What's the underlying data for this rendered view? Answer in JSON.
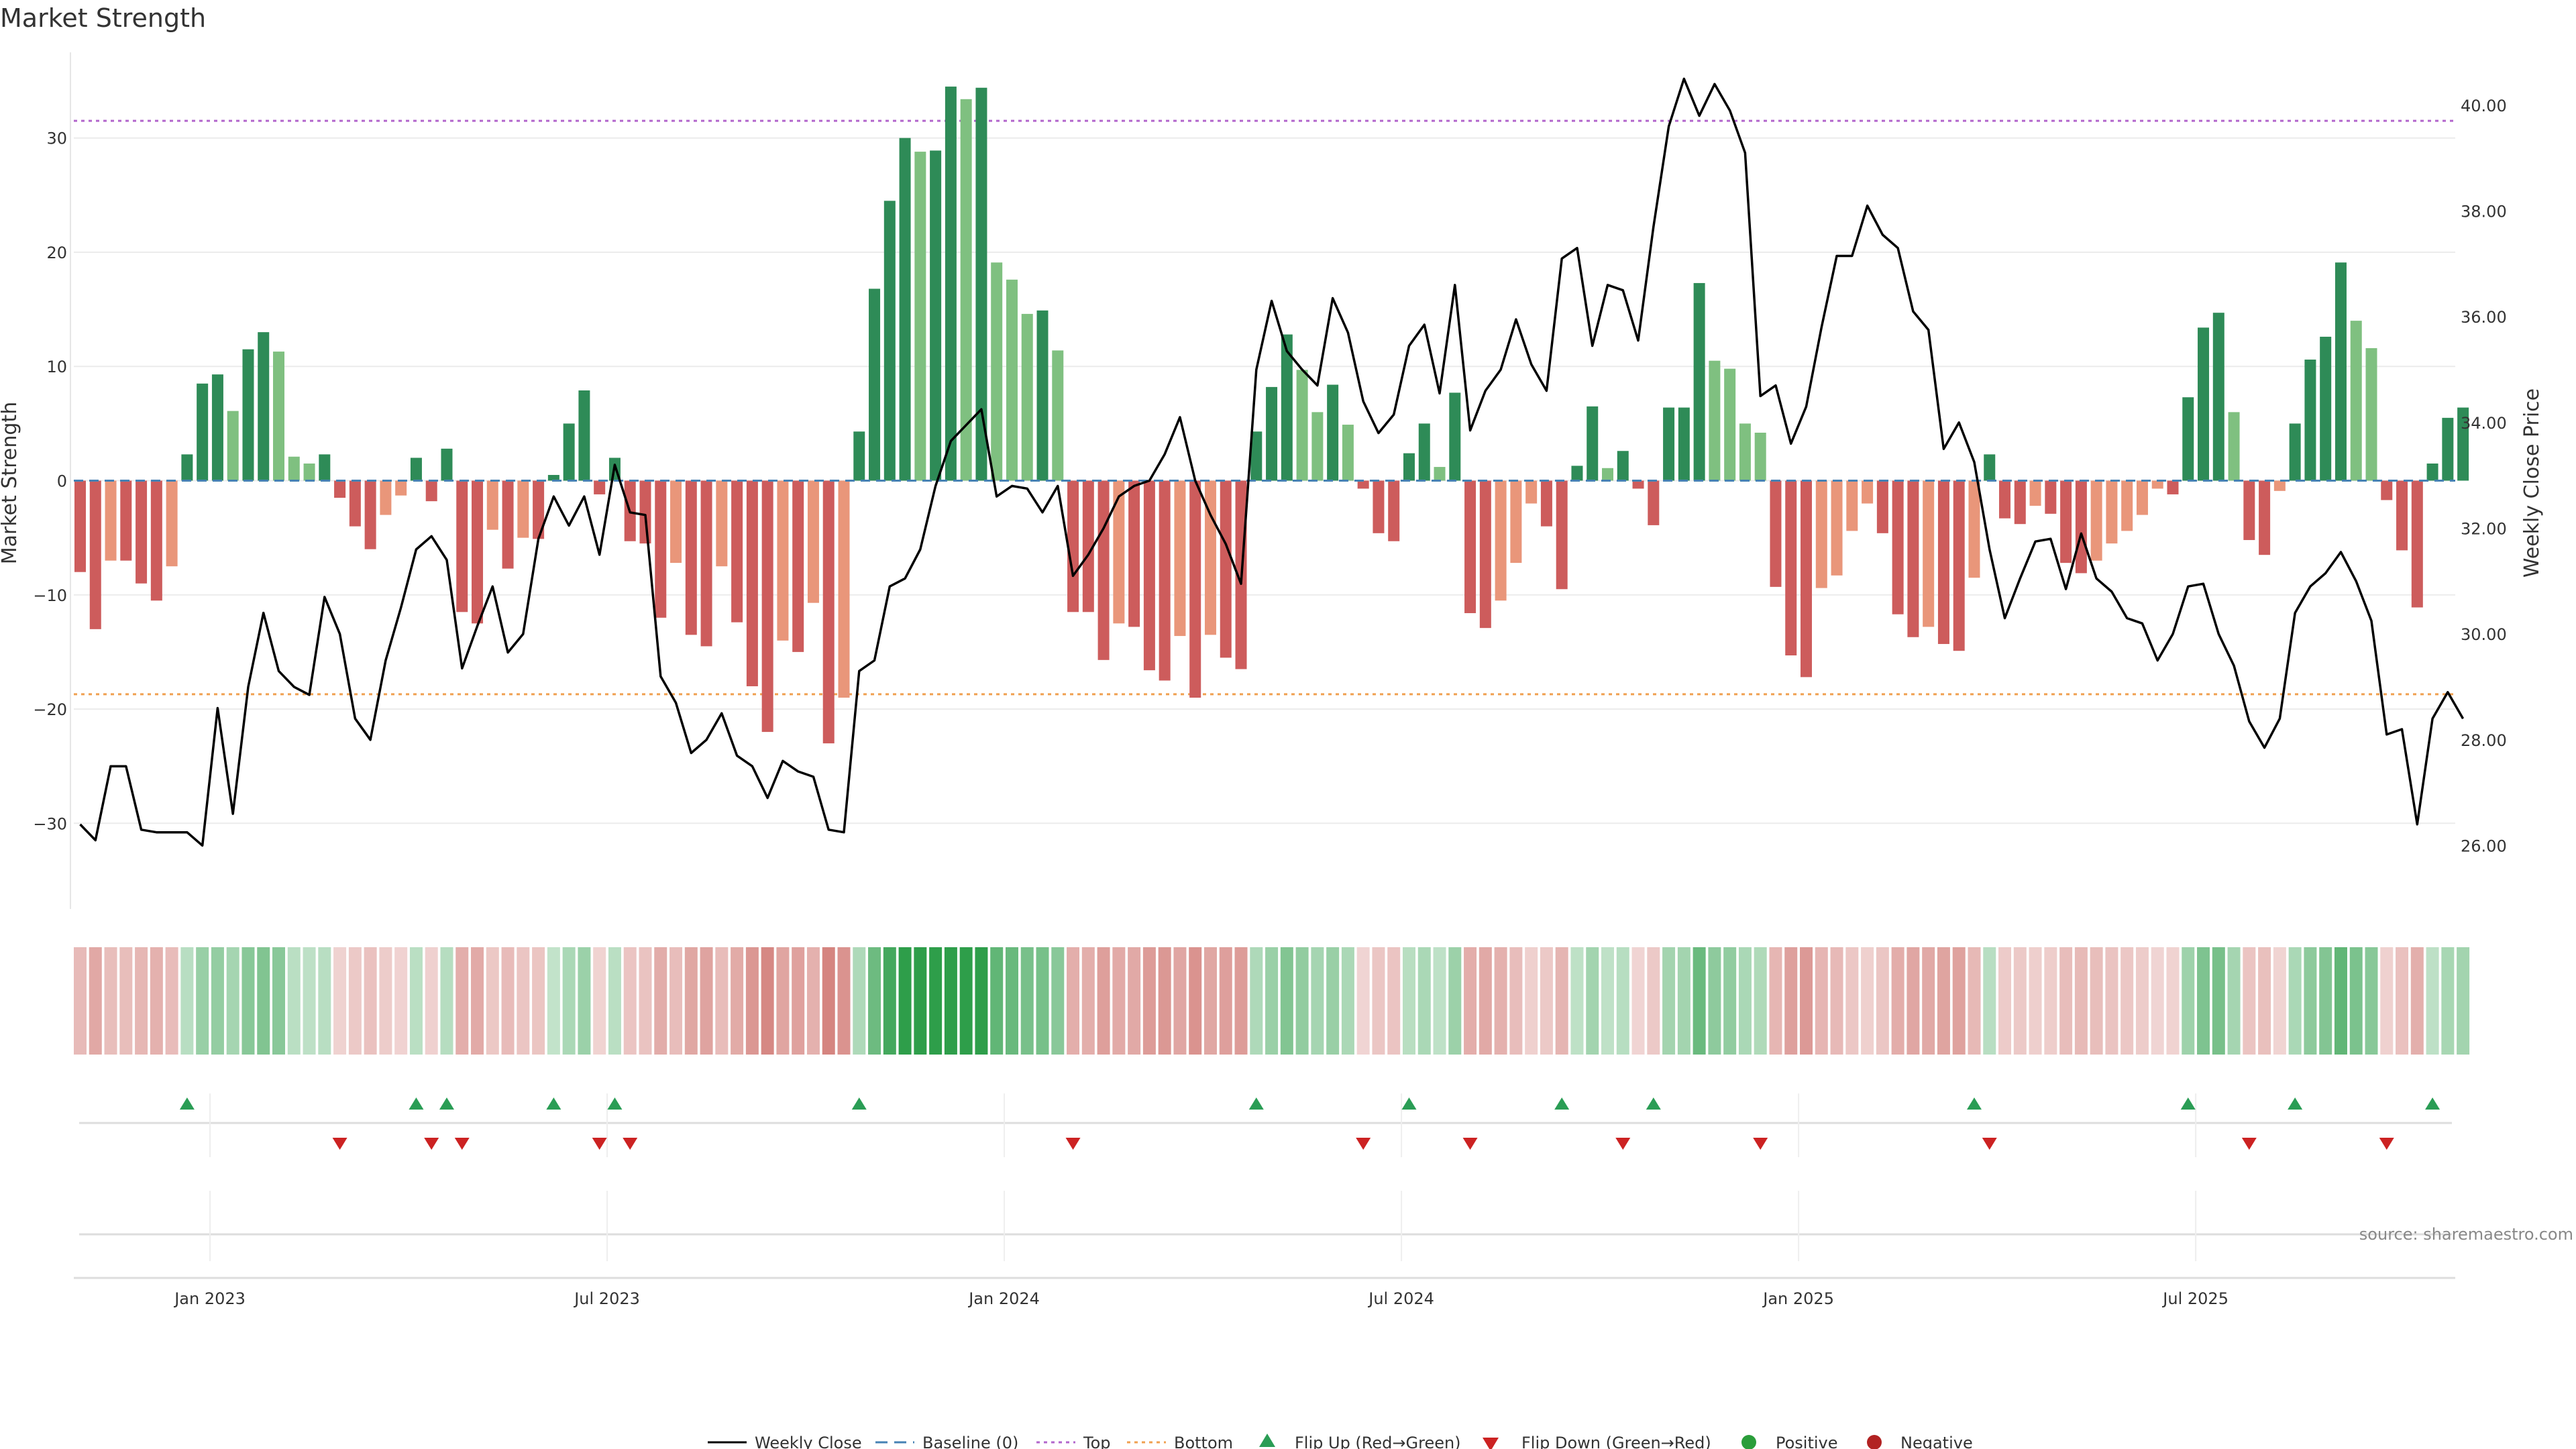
{
  "chart_data": {
    "type": "bar",
    "title": "Market Strength",
    "ylabel_left": "Market Strength",
    "ylabel_right": "Weekly Close Price",
    "ylim_left": [
      -37.5,
      37.5
    ],
    "ylim_right": [
      24.8,
      41.0
    ],
    "left_ticks": [
      30,
      20,
      10,
      0,
      -10,
      -20,
      -30
    ],
    "left_tick_labels": [
      "30",
      "20",
      "10",
      "0",
      "−10",
      "−20",
      "−30"
    ],
    "right_ticks": [
      40,
      38,
      36,
      34,
      32,
      30,
      28,
      26
    ],
    "right_tick_labels": [
      "40.00",
      "38.00",
      "36.00",
      "34.00",
      "32.00",
      "30.00",
      "28.00",
      "26.00"
    ],
    "x_tick_labels": [
      "Jan 2023",
      "Jul 2023",
      "Jan 2024",
      "Jul 2024",
      "Jan 2025",
      "Jul 2025"
    ],
    "x_tick_weeks": [
      8.5,
      34.5,
      60.5,
      86.5,
      112.5,
      138.5
    ],
    "top_line": 31.5,
    "bottom_line": -18.7,
    "strength": [
      -8,
      -13,
      -7,
      -7,
      -9,
      -10.5,
      -7.5,
      2.3,
      8.5,
      9.3,
      6.1,
      11.5,
      13,
      11.3,
      2.1,
      1.5,
      2.3,
      -1.5,
      -4,
      -6,
      -3,
      -1.3,
      2,
      -1.8,
      2.8,
      -11.5,
      -12.5,
      -4.3,
      -7.7,
      -5,
      -5.1,
      0.5,
      5,
      7.9,
      -1.2,
      2,
      -5.3,
      -5.5,
      -12,
      -7.2,
      -13.5,
      -14.5,
      -7.5,
      -12.4,
      -18,
      -22,
      -14,
      -15,
      -10.7,
      -23,
      -19,
      4.3,
      16.8,
      24.5,
      30,
      28.8,
      28.9,
      34.5,
      33.4,
      34.4,
      19.1,
      17.6,
      14.6,
      14.9,
      11.4,
      -11.5,
      -11.5,
      -15.7,
      -12.5,
      -12.8,
      -16.6,
      -17.5,
      -13.6,
      -19,
      -13.5,
      -15.5,
      -16.5,
      4.3,
      8.2,
      12.8,
      9.7,
      6,
      8.4,
      4.9,
      -0.7,
      -4.6,
      -5.3,
      2.4,
      5,
      1.2,
      7.7,
      -11.6,
      -12.9,
      -10.5,
      -7.2,
      -2,
      -4,
      -9.5,
      1.3,
      6.5,
      1.1,
      2.6,
      -0.7,
      -3.9,
      6.4,
      6.4,
      17.3,
      10.5,
      9.8,
      5,
      4.2,
      -9.3,
      -15.3,
      -17.2,
      -9.4,
      -8.3,
      -4.4,
      -2,
      -4.6,
      -11.7,
      -13.7,
      -12.8,
      -14.3,
      -14.9,
      -8.5,
      2.3,
      -3.3,
      -3.8,
      -2.2,
      -2.9,
      -7.2,
      -8.1,
      -7,
      -5.5,
      -4.4,
      -3,
      -0.7,
      -1.2,
      7.3,
      13.4,
      14.7,
      6,
      -5.2,
      -6.5,
      -0.9,
      5,
      10.6,
      12.6,
      19.1,
      14,
      11.6,
      -1.7,
      -6.1,
      -11.1,
      1.5,
      5.5,
      6.4
    ],
    "weekly_close": [
      26.4,
      26.1,
      27.5,
      27.5,
      26.3,
      26.25,
      26.25,
      26.25,
      26.0,
      28.6,
      26.6,
      29.0,
      30.4,
      29.3,
      29.0,
      28.85,
      30.7,
      30.0,
      28.4,
      28.0,
      29.5,
      30.5,
      31.6,
      31.85,
      31.4,
      29.35,
      30.15,
      30.9,
      29.65,
      30.0,
      31.8,
      32.6,
      32.05,
      32.6,
      31.5,
      33.2,
      32.3,
      32.25,
      29.2,
      28.7,
      27.75,
      28.0,
      28.5,
      27.7,
      27.5,
      26.9,
      27.6,
      27.4,
      27.3,
      26.3,
      26.25,
      29.3,
      29.5,
      30.9,
      31.05,
      31.6,
      32.8,
      33.65,
      33.95,
      34.25,
      32.6,
      32.8,
      32.75,
      32.3,
      32.8,
      31.1,
      31.5,
      32.0,
      32.6,
      32.8,
      32.9,
      33.4,
      34.1,
      32.9,
      32.25,
      31.7,
      30.95,
      35.0,
      36.3,
      35.35,
      35.0,
      34.7,
      36.35,
      35.7,
      34.4,
      33.8,
      34.15,
      35.45,
      35.85,
      34.55,
      36.6,
      33.85,
      34.6,
      35.0,
      35.95,
      35.1,
      34.6,
      37.1,
      37.3,
      35.45,
      36.6,
      36.5,
      35.55,
      37.7,
      39.6,
      40.5,
      39.8,
      40.4,
      39.9,
      39.1,
      34.5,
      34.7,
      33.6,
      34.3,
      35.8,
      37.15,
      37.15,
      38.1,
      37.55,
      37.3,
      36.1,
      35.75,
      33.5,
      34.0,
      33.25,
      31.6,
      30.3,
      31.05,
      31.75,
      31.8,
      30.85,
      31.9,
      31.05,
      30.8,
      30.3,
      30.2,
      29.5,
      30.0,
      30.9,
      30.95,
      30.0,
      29.4,
      28.35,
      27.85,
      28.4,
      30.4,
      30.9,
      31.15,
      31.55,
      31.0,
      30.25,
      28.1,
      28.2,
      26.4,
      28.4,
      28.9,
      28.4
    ],
    "flip_up_weeks": [
      7,
      22,
      24,
      31,
      35,
      51,
      77,
      87,
      97,
      103,
      124,
      138,
      145,
      154
    ],
    "flip_down_weeks": [
      17,
      23,
      25,
      34,
      36,
      65,
      84,
      91,
      101,
      110,
      125,
      142,
      151
    ],
    "legend": [
      "Weekly Close",
      "Baseline (0)",
      "Top",
      "Bottom",
      "Flip Up (Red→Green)",
      "Flip Down (Green→Red)",
      "Positive",
      "Negative"
    ]
  },
  "colors": {
    "pos_strong": "#2e8b57",
    "pos_weak": "#7fc080",
    "neg_strong": "#cd5c5c",
    "neg_weak": "#e9967a",
    "line": "#000000",
    "baseline": "#4682b4",
    "top": "#b266cc",
    "bottom": "#f0a050",
    "flip_up": "#2a9d55",
    "flip_down": "#cc2222",
    "positive_dot": "#2a9d3a",
    "negative_dot": "#b22222"
  },
  "source": "source: sharemaestro.com"
}
